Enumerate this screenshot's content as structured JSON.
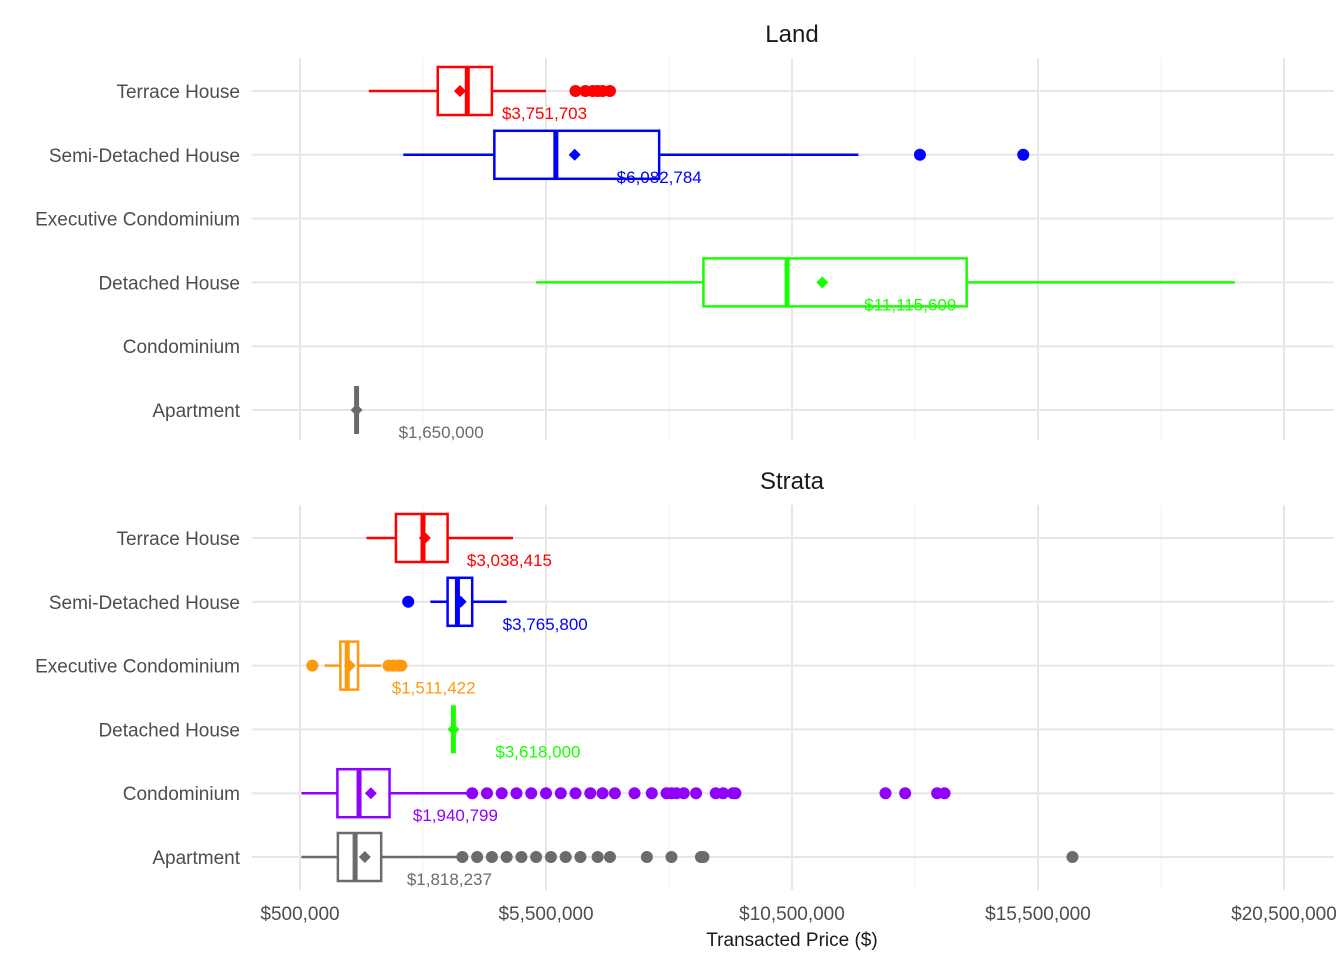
{
  "chart_data": {
    "type": "boxplot",
    "orientation": "horizontal",
    "xlabel": "Transacted Price ($)",
    "ylabel": "",
    "xlim": [
      -500000,
      21500000
    ],
    "x_ticks": [
      500000,
      5500000,
      10500000,
      15500000,
      20500000
    ],
    "x_tick_labels": [
      "$500,000",
      "$5,500,000",
      "$10,500,000",
      "$15,500,000",
      "$20,500,000"
    ],
    "grid": true,
    "categories": [
      "Terrace House",
      "Semi-Detached House",
      "Executive Condominium",
      "Detached House",
      "Condominium",
      "Apartment"
    ],
    "colors": {
      "Terrace House": "#ff0000",
      "Semi-Detached House": "#0000ff",
      "Executive Condominium": "#ff9a0e",
      "Detached House": "#1aff00",
      "Condominium": "#9000ff",
      "Apartment": "#6b6b6b"
    },
    "facets": [
      {
        "title": "Land",
        "series": [
          {
            "category": "Terrace House",
            "whisker_low": 1900000,
            "q1": 3300000,
            "median": 3900000,
            "q3": 4400000,
            "whisker_high": 5500000,
            "mean": 3751703,
            "mean_label": "$3,751,703",
            "outliers": [
              6100000,
              6300000,
              6450000,
              6550000,
              6650000,
              6800000
            ]
          },
          {
            "category": "Semi-Detached House",
            "whisker_low": 2600000,
            "q1": 4450000,
            "median": 5700000,
            "q3": 7800000,
            "whisker_high": 11850000,
            "mean": 6082784,
            "mean_label": "$6,082,784",
            "outliers": [
              13100000,
              15200000
            ]
          },
          {
            "category": "Executive Condominium",
            "empty": true
          },
          {
            "category": "Detached House",
            "whisker_low": 5300000,
            "q1": 8700000,
            "median": 10400000,
            "q3": 14050000,
            "whisker_high": 19500000,
            "mean": 11115609,
            "mean_label": "$11,115,609",
            "outliers": []
          },
          {
            "category": "Condominium",
            "empty": true
          },
          {
            "category": "Apartment",
            "whisker_low": 1650000,
            "q1": 1650000,
            "median": 1650000,
            "q3": 1650000,
            "whisker_high": 1650000,
            "mean": 1650000,
            "mean_label": "$1,650,000",
            "outliers": [],
            "single_value": true
          }
        ]
      },
      {
        "title": "Strata",
        "series": [
          {
            "category": "Terrace House",
            "whisker_low": 1850000,
            "q1": 2450000,
            "median": 3000000,
            "q3": 3500000,
            "whisker_high": 4830000,
            "mean": 3038415,
            "mean_label": "$3,038,415",
            "outliers": []
          },
          {
            "category": "Semi-Detached House",
            "whisker_low": 3150000,
            "q1": 3500000,
            "median": 3700000,
            "q3": 4000000,
            "whisker_high": 4700000,
            "mean": 3765800,
            "mean_label": "$3,765,800",
            "outliers": [
              2700000
            ]
          },
          {
            "category": "Executive Condominium",
            "whisker_low": 1000000,
            "q1": 1320000,
            "median": 1460000,
            "q3": 1680000,
            "whisker_high": 2150000,
            "mean": 1511422,
            "mean_label": "$1,511,422",
            "outliers": [
              750000,
              2300000,
              2400000,
              2500000,
              2560000
            ]
          },
          {
            "category": "Detached House",
            "whisker_low": 3618000,
            "q1": 3618000,
            "median": 3618000,
            "q3": 3618000,
            "whisker_high": 3618000,
            "mean": 3618000,
            "mean_label": "$3,618,000",
            "outliers": [],
            "single_value": true
          },
          {
            "category": "Condominium",
            "whisker_low": 530000,
            "q1": 1260000,
            "median": 1700000,
            "q3": 2320000,
            "whisker_high": 4000000,
            "mean": 1940799,
            "mean_label": "$1,940,799",
            "outliers": [
              4000000,
              4300000,
              4600000,
              4900000,
              5200000,
              5500000,
              5800000,
              6100000,
              6400000,
              6650000,
              6900000,
              7300000,
              7650000,
              7950000,
              8050000,
              8150000,
              8300000,
              8550000,
              8950000,
              9100000,
              9300000,
              9350000,
              12400000,
              12800000,
              13450000,
              13600000
            ]
          },
          {
            "category": "Apartment",
            "whisker_low": 530000,
            "q1": 1270000,
            "median": 1620000,
            "q3": 2150000,
            "whisker_high": 3800000,
            "mean": 1818237,
            "mean_label": "$1,818,237",
            "outliers": [
              3800000,
              4100000,
              4400000,
              4700000,
              5000000,
              5300000,
              5600000,
              5900000,
              6200000,
              6550000,
              6800000,
              7550000,
              8050000,
              8650000,
              8700000,
              16200000
            ]
          }
        ]
      }
    ]
  }
}
